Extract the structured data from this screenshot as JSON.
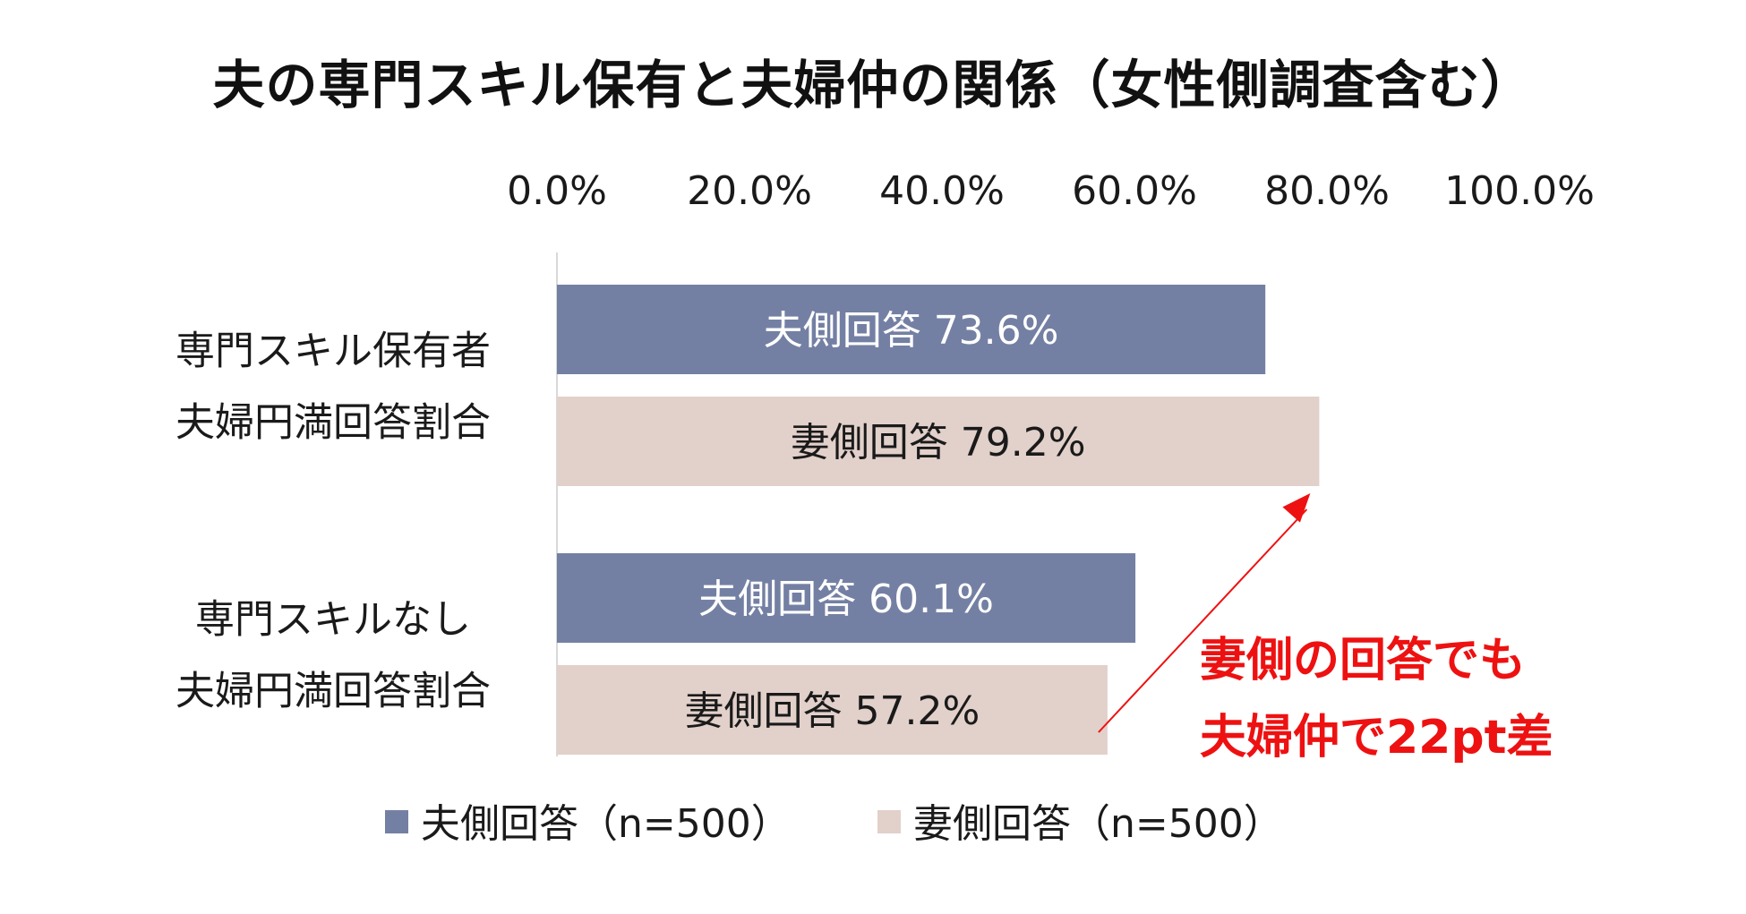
{
  "chart_data": {
    "type": "bar",
    "orientation": "horizontal",
    "title": "夫の専門スキル保有と夫婦仲の関係（女性側調査含む）",
    "xlim": [
      0,
      100
    ],
    "x_ticks": [
      "0.0%",
      "20.0%",
      "40.0%",
      "60.0%",
      "80.0%",
      "100.0%"
    ],
    "categories": [
      [
        "専門スキル保有者",
        "夫婦円満回答割合"
      ],
      [
        "専門スキルなし",
        "夫婦円満回答割合"
      ]
    ],
    "series": [
      {
        "name": "夫側回答（n=500）",
        "color": "#7480a3",
        "text_color": "#ffffff",
        "values": [
          73.6,
          60.1
        ],
        "labels": [
          "夫側回答 73.6%",
          "夫側回答 60.1%"
        ]
      },
      {
        "name": "妻側回答（n=500）",
        "color": "#e2d0ca",
        "text_color": "#1a1a1a",
        "values": [
          79.2,
          57.2
        ],
        "labels": [
          "妻側回答 79.2%",
          "妻側回答 57.2%"
        ]
      }
    ],
    "legend_position": "bottom",
    "grid": false,
    "annotation": {
      "lines": [
        "妻側の回答でも",
        "夫婦仲で22pt差"
      ],
      "color": "#ee1111",
      "arrow_from": {
        "series": 1,
        "category": 1
      },
      "arrow_to": {
        "series": 1,
        "category": 0
      }
    }
  }
}
